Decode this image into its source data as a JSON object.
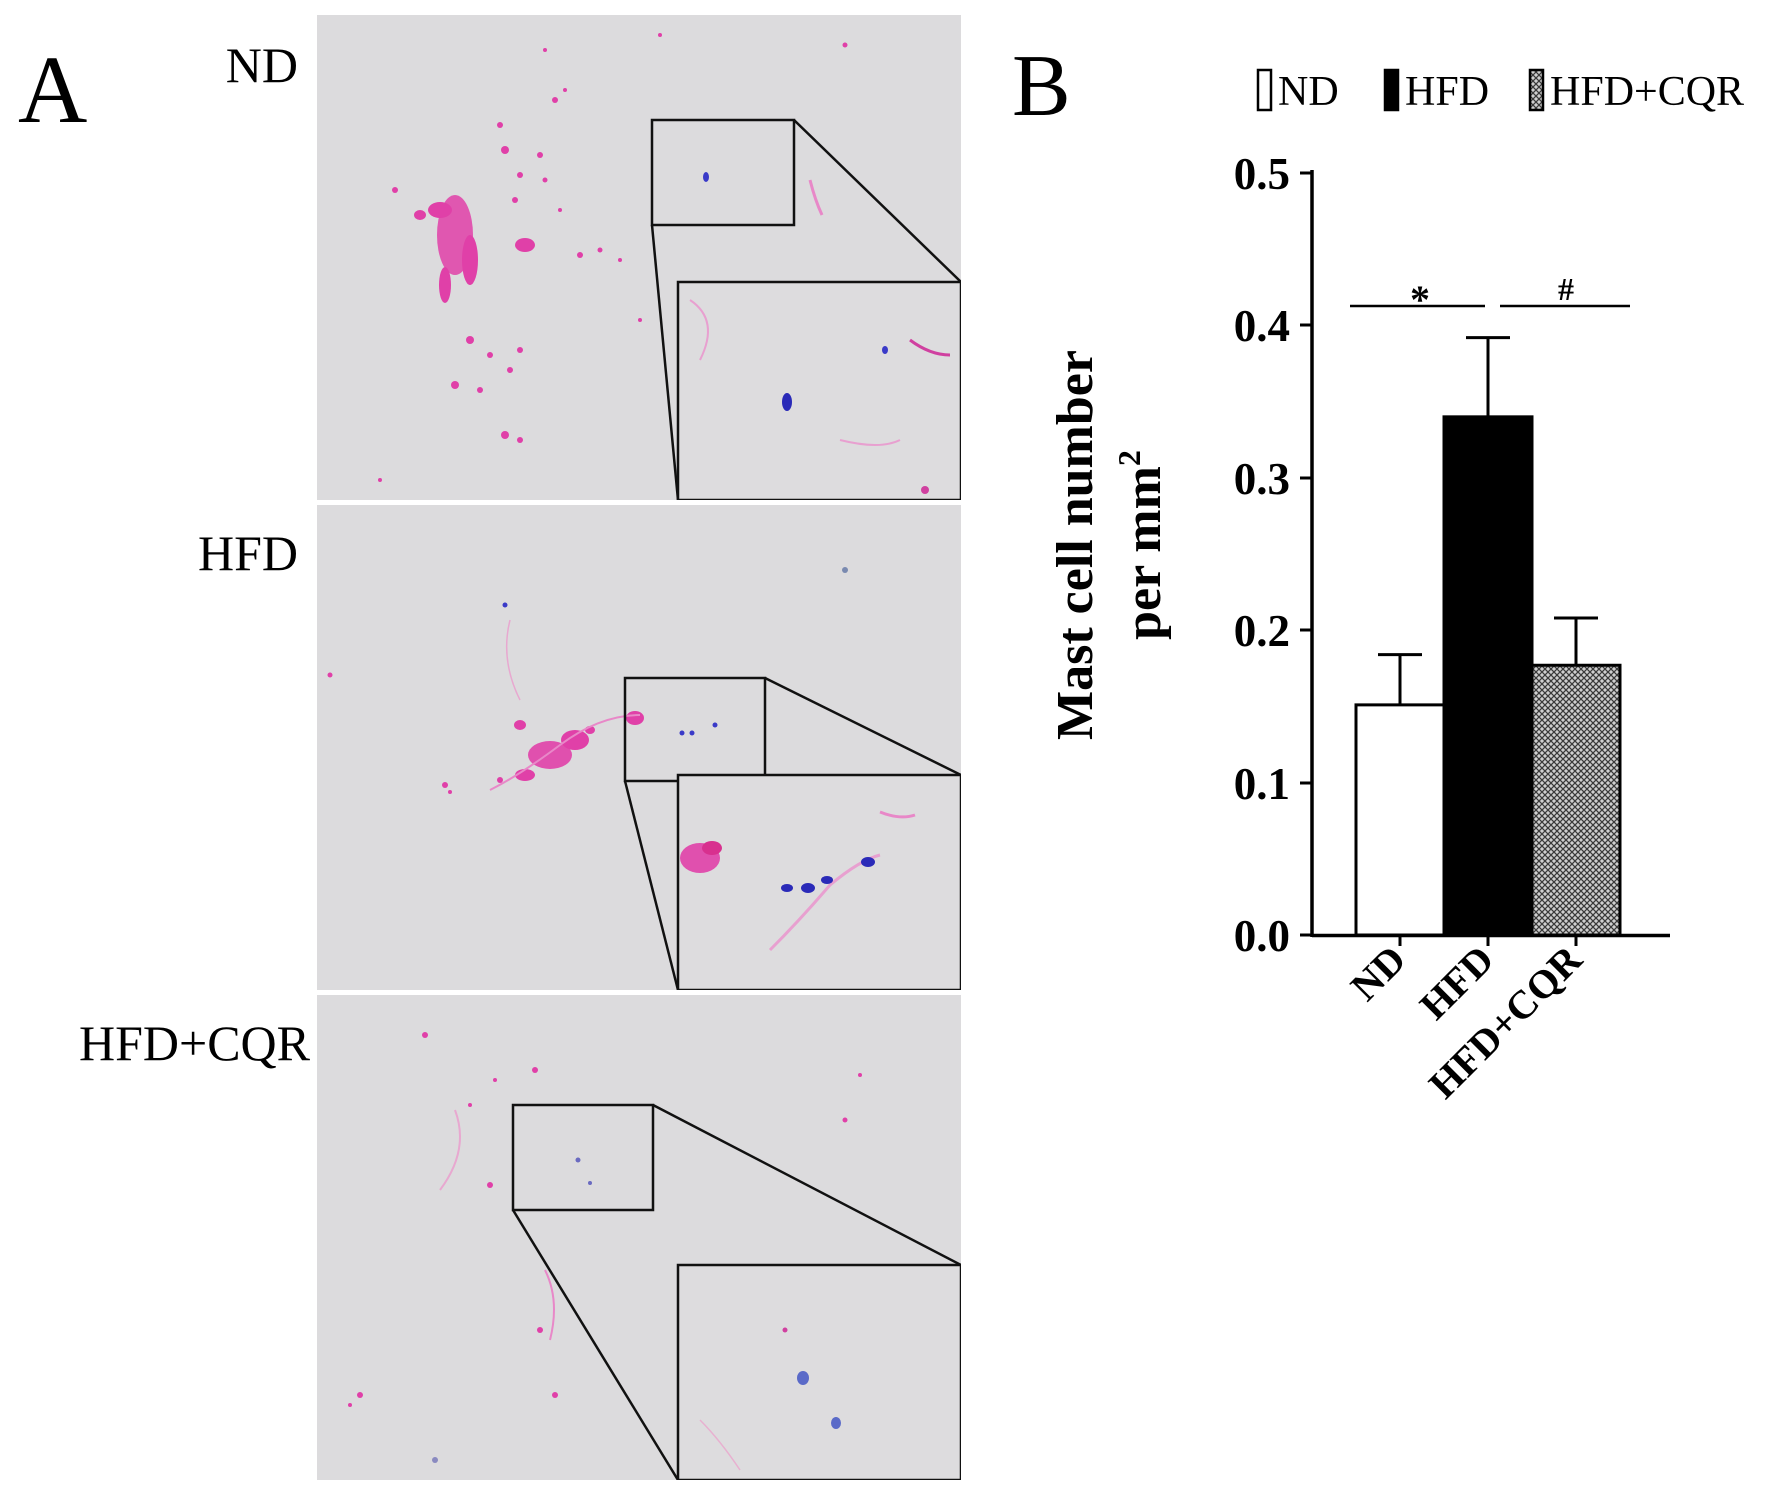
{
  "panel_a": {
    "label": "A",
    "micrographs": [
      {
        "label": "ND"
      },
      {
        "label": "HFD"
      },
      {
        "label": "HFD+CQR"
      }
    ]
  },
  "panel_b": {
    "label": "B"
  },
  "colors": {
    "tissue_background": "#dcdbdd",
    "eosin_stain": "#e040a8",
    "toluidine_blue": "#3a3ac8",
    "bar_nd": "#ffffff",
    "bar_hfd": "#000000",
    "bar_hfd_cqr": "#9a9a9a"
  },
  "chart_data": {
    "type": "bar",
    "title": "",
    "categories": [
      "ND",
      "HFD",
      "HFD+CQR"
    ],
    "values": [
      0.151,
      0.34,
      0.177
    ],
    "errors": [
      0.033,
      0.052,
      0.031
    ],
    "fills": [
      "white",
      "black",
      "crosshatch"
    ],
    "legend": [
      "ND",
      "HFD",
      "HFD+CQR"
    ],
    "legend_position": "top",
    "ylabel_line1": "Mast cell number",
    "ylabel_line2": "per mm",
    "ylabel_superscript": "2",
    "ylim": [
      0.0,
      0.5
    ],
    "yticks": [
      "0.0",
      "0.1",
      "0.2",
      "0.3",
      "0.4",
      "0.5"
    ],
    "grid": false,
    "significance": [
      {
        "label": "*",
        "from": "ND",
        "to": "HFD"
      },
      {
        "label": "#",
        "from": "HFD",
        "to": "HFD+CQR"
      }
    ]
  }
}
